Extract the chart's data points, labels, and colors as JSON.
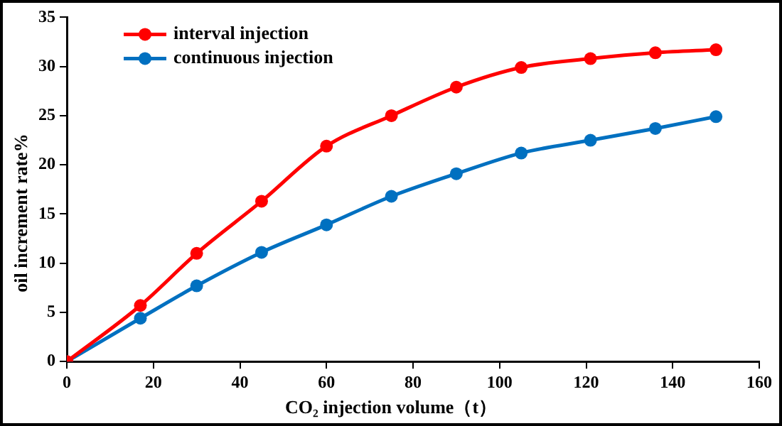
{
  "chart_data": {
    "type": "line",
    "xlabel": "CO₂ injection volume（t）",
    "ylabel": "oil increment rate%",
    "x": [
      0,
      17,
      30,
      45,
      60,
      75,
      90,
      105,
      121,
      136,
      150
    ],
    "series": [
      {
        "name": "interval injection",
        "color": "#ff0000",
        "values": [
          0,
          5.7,
          11.0,
          16.3,
          21.9,
          25.0,
          27.9,
          29.9,
          30.8,
          31.4,
          31.7
        ]
      },
      {
        "name": "continuous injection",
        "color": "#0070c0",
        "values": [
          0,
          4.4,
          7.7,
          11.1,
          13.9,
          16.8,
          19.1,
          21.2,
          22.5,
          23.7,
          24.9
        ]
      }
    ],
    "xlim": [
      0,
      160
    ],
    "xticks": [
      0,
      20,
      40,
      60,
      80,
      100,
      120,
      140,
      160
    ],
    "ylim": [
      0,
      35
    ],
    "yticks": [
      0,
      5,
      10,
      15,
      20,
      25,
      30,
      35
    ],
    "grid": false,
    "legend": "top left",
    "marker": "circle",
    "line_style": "solid"
  }
}
